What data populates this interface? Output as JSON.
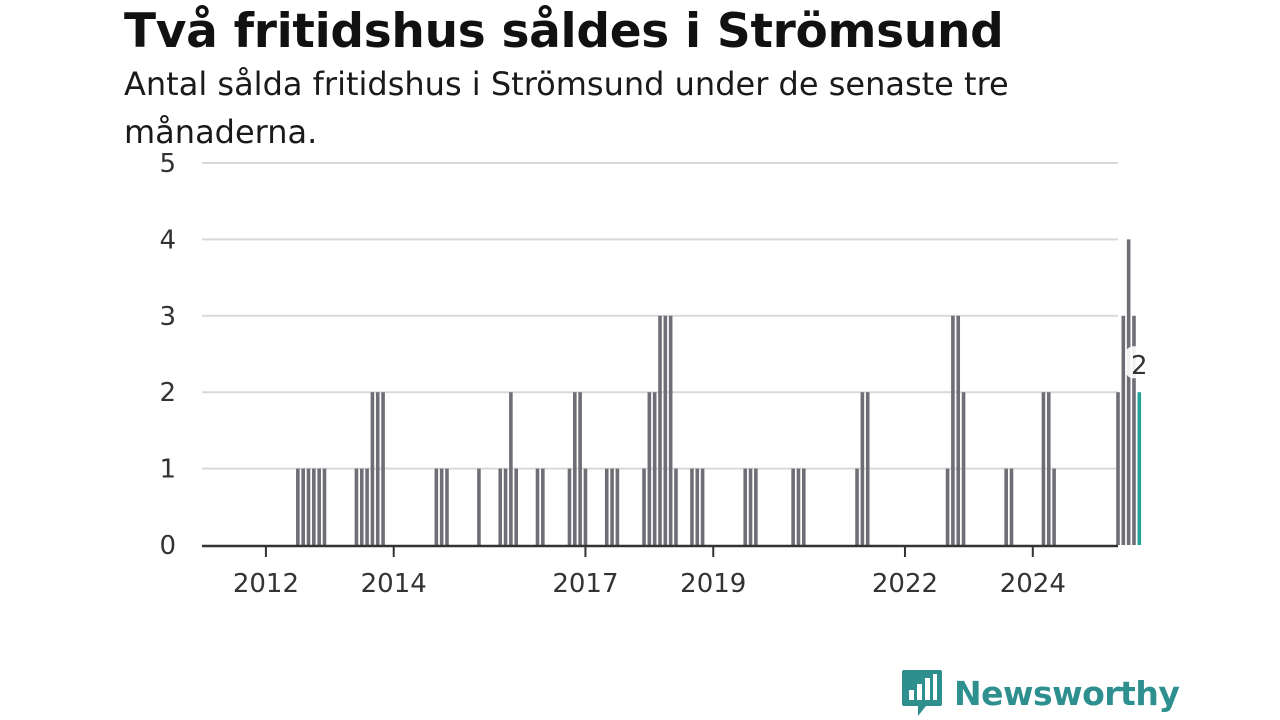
{
  "header": {
    "title": "Två fritidshus såldes i Strömsund",
    "subtitle": "Antal sålda fritidshus i Strömsund under de senaste tre månaderna."
  },
  "logo": {
    "text": "Newsworthy",
    "icon": "bar-chart-speech-bubble-icon"
  },
  "colors": {
    "bar": "#6e6e76",
    "highlight": "#25a39a",
    "grid": "#d9d9d9",
    "axis": "#333333",
    "brand": "#2e8f8f"
  },
  "chart_data": {
    "type": "bar",
    "title": "Två fritidshus såldes i Strömsund",
    "subtitle": "Antal sålda fritidshus i Strömsund under de senaste tre månaderna.",
    "xlabel": "",
    "ylabel": "",
    "ylim": [
      0,
      5
    ],
    "yticks": [
      0,
      1,
      2,
      3,
      4,
      5
    ],
    "xlim": [
      "2011-01",
      "2025-05"
    ],
    "xticks": [
      {
        "label": "2012",
        "date": "2012-01"
      },
      {
        "label": "2014",
        "date": "2014-01"
      },
      {
        "label": "2017",
        "date": "2017-01"
      },
      {
        "label": "2019",
        "date": "2019-01"
      },
      {
        "label": "2022",
        "date": "2022-01"
      },
      {
        "label": "2024",
        "date": "2024-01"
      }
    ],
    "grid": true,
    "bars": [
      {
        "date": "2012-07",
        "value": 1
      },
      {
        "date": "2012-08",
        "value": 1
      },
      {
        "date": "2012-09",
        "value": 1
      },
      {
        "date": "2012-10",
        "value": 1
      },
      {
        "date": "2012-11",
        "value": 1
      },
      {
        "date": "2012-12",
        "value": 1
      },
      {
        "date": "2013-06",
        "value": 1
      },
      {
        "date": "2013-07",
        "value": 1
      },
      {
        "date": "2013-08",
        "value": 1
      },
      {
        "date": "2013-09",
        "value": 2
      },
      {
        "date": "2013-10",
        "value": 2
      },
      {
        "date": "2013-11",
        "value": 2
      },
      {
        "date": "2014-09",
        "value": 1
      },
      {
        "date": "2014-10",
        "value": 1
      },
      {
        "date": "2014-11",
        "value": 1
      },
      {
        "date": "2015-05",
        "value": 1
      },
      {
        "date": "2015-09",
        "value": 1
      },
      {
        "date": "2015-10",
        "value": 1
      },
      {
        "date": "2015-11",
        "value": 2
      },
      {
        "date": "2015-12",
        "value": 1
      },
      {
        "date": "2016-04",
        "value": 1
      },
      {
        "date": "2016-05",
        "value": 1
      },
      {
        "date": "2016-10",
        "value": 1
      },
      {
        "date": "2016-11",
        "value": 2
      },
      {
        "date": "2016-12",
        "value": 2
      },
      {
        "date": "2017-01",
        "value": 1
      },
      {
        "date": "2017-05",
        "value": 1
      },
      {
        "date": "2017-06",
        "value": 1
      },
      {
        "date": "2017-07",
        "value": 1
      },
      {
        "date": "2017-12",
        "value": 1
      },
      {
        "date": "2018-01",
        "value": 2
      },
      {
        "date": "2018-02",
        "value": 2
      },
      {
        "date": "2018-03",
        "value": 3
      },
      {
        "date": "2018-04",
        "value": 3
      },
      {
        "date": "2018-05",
        "value": 3
      },
      {
        "date": "2018-06",
        "value": 1
      },
      {
        "date": "2018-09",
        "value": 1
      },
      {
        "date": "2018-10",
        "value": 1
      },
      {
        "date": "2018-11",
        "value": 1
      },
      {
        "date": "2019-07",
        "value": 1
      },
      {
        "date": "2019-08",
        "value": 1
      },
      {
        "date": "2019-09",
        "value": 1
      },
      {
        "date": "2020-04",
        "value": 1
      },
      {
        "date": "2020-05",
        "value": 1
      },
      {
        "date": "2020-06",
        "value": 1
      },
      {
        "date": "2021-04",
        "value": 1
      },
      {
        "date": "2021-05",
        "value": 2
      },
      {
        "date": "2021-06",
        "value": 2
      },
      {
        "date": "2022-09",
        "value": 1
      },
      {
        "date": "2022-10",
        "value": 3
      },
      {
        "date": "2022-11",
        "value": 3
      },
      {
        "date": "2022-12",
        "value": 2
      },
      {
        "date": "2023-08",
        "value": 1
      },
      {
        "date": "2023-09",
        "value": 1
      },
      {
        "date": "2024-03",
        "value": 2
      },
      {
        "date": "2024-04",
        "value": 2
      },
      {
        "date": "2024-05",
        "value": 1
      },
      {
        "date": "2025-05",
        "value": 2
      },
      {
        "date": "2025-06",
        "value": 3
      },
      {
        "date": "2025-07",
        "value": 4
      },
      {
        "date": "2025-08",
        "value": 3
      },
      {
        "date": "2025-09",
        "value": 2
      }
    ],
    "highlight": {
      "date": "2025-09",
      "value": 2,
      "label": "2"
    }
  }
}
